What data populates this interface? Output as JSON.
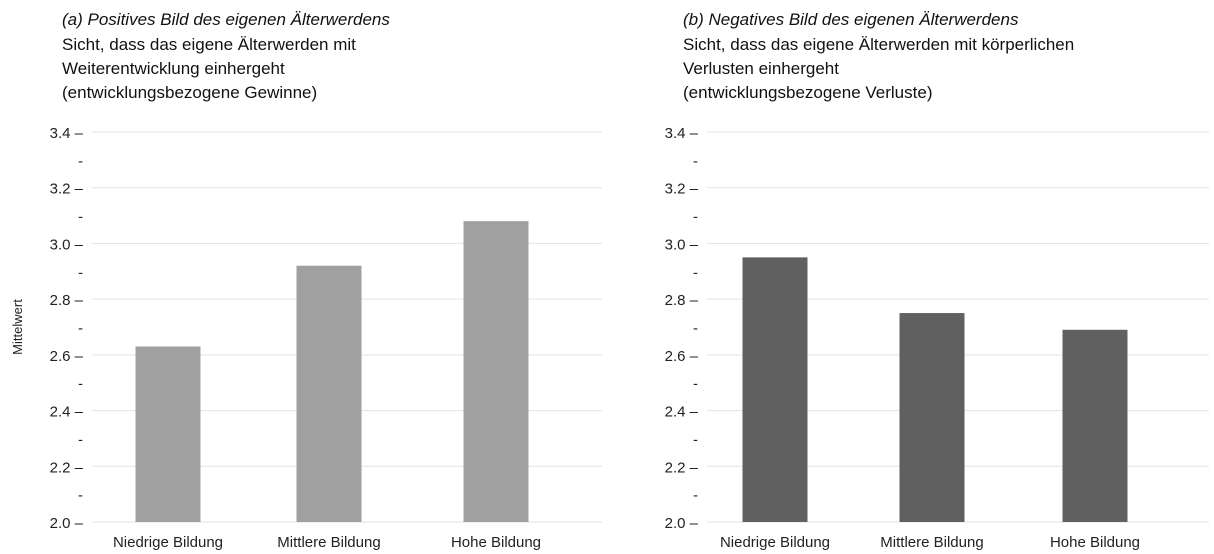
{
  "chart_data": [
    {
      "type": "bar",
      "title": "(a) Positives Bild des eigenen Älterwerdens",
      "subtitle_lines": [
        "Sicht, dass das eigene Älterwerden mit",
        "Weiterentwicklung einhergeht",
        "(entwicklungsbezogene Gewinne)"
      ],
      "ylabel": "Mittelwert",
      "xlabel": "",
      "categories": [
        "Niedrige Bildung",
        "Mittlere Bildung",
        "Hohe Bildung"
      ],
      "values": [
        2.63,
        2.92,
        3.08
      ],
      "ylim": [
        2.0,
        3.4
      ],
      "yticks": [
        "2.0",
        "2.2",
        "2.4",
        "2.6",
        "2.8",
        "3.0",
        "3.2",
        "3.4"
      ],
      "minor_tick_label": "-",
      "bar_color": "#a0a0a0",
      "grid": true
    },
    {
      "type": "bar",
      "title": "(b) Negatives Bild des eigenen Älterwerdens",
      "subtitle_lines": [
        "Sicht, dass das eigene Älterwerden mit körperlichen",
        "Verlusten einhergeht",
        "(entwicklungsbezogene Verluste)"
      ],
      "ylabel": "",
      "xlabel": "",
      "categories": [
        "Niedrige Bildung",
        "Mittlere Bildung",
        "Hohe Bildung"
      ],
      "values": [
        2.95,
        2.75,
        2.69
      ],
      "ylim": [
        2.0,
        3.4
      ],
      "yticks": [
        "2.0",
        "2.2",
        "2.4",
        "2.6",
        "2.8",
        "3.0",
        "3.2",
        "3.4"
      ],
      "minor_tick_label": "-",
      "bar_color": "#606060",
      "grid": true
    }
  ]
}
